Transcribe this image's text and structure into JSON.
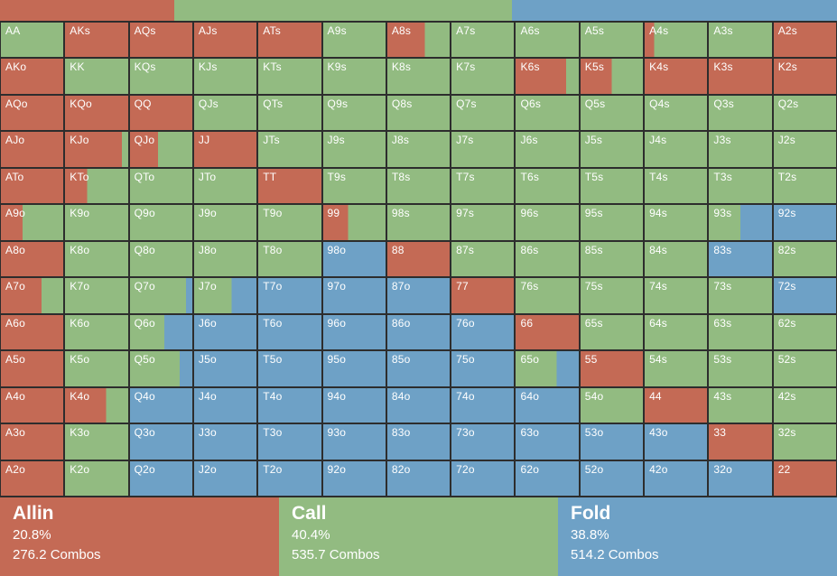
{
  "legend_colors": {
    "allin": "#c46a55",
    "call": "#92bb81",
    "fold": "#6ea1c6"
  },
  "grid_line_color": "#2d2d2d",
  "text_color": "#ffffff",
  "top_bar": {
    "segments": [
      {
        "action": "allin",
        "width_pct": 20.8
      },
      {
        "action": "call",
        "width_pct": 40.4
      },
      {
        "action": "fold",
        "width_pct": 38.8
      }
    ]
  },
  "grid": {
    "rows": 13,
    "cols": 13,
    "cells": [
      {
        "h": "AA",
        "a": 0,
        "c": 100,
        "f": 0
      },
      {
        "h": "AKs",
        "a": 100,
        "c": 0,
        "f": 0
      },
      {
        "h": "AQs",
        "a": 100,
        "c": 0,
        "f": 0
      },
      {
        "h": "AJs",
        "a": 100,
        "c": 0,
        "f": 0
      },
      {
        "h": "ATs",
        "a": 100,
        "c": 0,
        "f": 0
      },
      {
        "h": "A9s",
        "a": 0,
        "c": 100,
        "f": 0
      },
      {
        "h": "A8s",
        "a": 60,
        "c": 40,
        "f": 0
      },
      {
        "h": "A7s",
        "a": 0,
        "c": 100,
        "f": 0
      },
      {
        "h": "A6s",
        "a": 0,
        "c": 100,
        "f": 0
      },
      {
        "h": "A5s",
        "a": 0,
        "c": 100,
        "f": 0
      },
      {
        "h": "A4s",
        "a": 15,
        "c": 85,
        "f": 0
      },
      {
        "h": "A3s",
        "a": 0,
        "c": 100,
        "f": 0
      },
      {
        "h": "A2s",
        "a": 100,
        "c": 0,
        "f": 0
      },
      {
        "h": "AKo",
        "a": 100,
        "c": 0,
        "f": 0
      },
      {
        "h": "KK",
        "a": 0,
        "c": 100,
        "f": 0
      },
      {
        "h": "KQs",
        "a": 0,
        "c": 100,
        "f": 0
      },
      {
        "h": "KJs",
        "a": 0,
        "c": 100,
        "f": 0
      },
      {
        "h": "KTs",
        "a": 0,
        "c": 100,
        "f": 0
      },
      {
        "h": "K9s",
        "a": 0,
        "c": 100,
        "f": 0
      },
      {
        "h": "K8s",
        "a": 0,
        "c": 100,
        "f": 0
      },
      {
        "h": "K7s",
        "a": 0,
        "c": 100,
        "f": 0
      },
      {
        "h": "K6s",
        "a": 80,
        "c": 20,
        "f": 0
      },
      {
        "h": "K5s",
        "a": 50,
        "c": 50,
        "f": 0
      },
      {
        "h": "K4s",
        "a": 100,
        "c": 0,
        "f": 0
      },
      {
        "h": "K3s",
        "a": 100,
        "c": 0,
        "f": 0
      },
      {
        "h": "K2s",
        "a": 100,
        "c": 0,
        "f": 0
      },
      {
        "h": "AQo",
        "a": 100,
        "c": 0,
        "f": 0
      },
      {
        "h": "KQo",
        "a": 100,
        "c": 0,
        "f": 0
      },
      {
        "h": "QQ",
        "a": 100,
        "c": 0,
        "f": 0
      },
      {
        "h": "QJs",
        "a": 0,
        "c": 100,
        "f": 0
      },
      {
        "h": "QTs",
        "a": 0,
        "c": 100,
        "f": 0
      },
      {
        "h": "Q9s",
        "a": 0,
        "c": 100,
        "f": 0
      },
      {
        "h": "Q8s",
        "a": 0,
        "c": 100,
        "f": 0
      },
      {
        "h": "Q7s",
        "a": 0,
        "c": 100,
        "f": 0
      },
      {
        "h": "Q6s",
        "a": 0,
        "c": 100,
        "f": 0
      },
      {
        "h": "Q5s",
        "a": 0,
        "c": 100,
        "f": 0
      },
      {
        "h": "Q4s",
        "a": 0,
        "c": 100,
        "f": 0
      },
      {
        "h": "Q3s",
        "a": 0,
        "c": 100,
        "f": 0
      },
      {
        "h": "Q2s",
        "a": 0,
        "c": 100,
        "f": 0
      },
      {
        "h": "AJo",
        "a": 100,
        "c": 0,
        "f": 0
      },
      {
        "h": "KJo",
        "a": 90,
        "c": 10,
        "f": 0
      },
      {
        "h": "QJo",
        "a": 45,
        "c": 55,
        "f": 0
      },
      {
        "h": "JJ",
        "a": 100,
        "c": 0,
        "f": 0
      },
      {
        "h": "JTs",
        "a": 0,
        "c": 100,
        "f": 0
      },
      {
        "h": "J9s",
        "a": 0,
        "c": 100,
        "f": 0
      },
      {
        "h": "J8s",
        "a": 0,
        "c": 100,
        "f": 0
      },
      {
        "h": "J7s",
        "a": 0,
        "c": 100,
        "f": 0
      },
      {
        "h": "J6s",
        "a": 0,
        "c": 100,
        "f": 0
      },
      {
        "h": "J5s",
        "a": 0,
        "c": 100,
        "f": 0
      },
      {
        "h": "J4s",
        "a": 0,
        "c": 100,
        "f": 0
      },
      {
        "h": "J3s",
        "a": 0,
        "c": 100,
        "f": 0
      },
      {
        "h": "J2s",
        "a": 0,
        "c": 100,
        "f": 0
      },
      {
        "h": "ATo",
        "a": 100,
        "c": 0,
        "f": 0
      },
      {
        "h": "KTo",
        "a": 35,
        "c": 65,
        "f": 0
      },
      {
        "h": "QTo",
        "a": 0,
        "c": 100,
        "f": 0
      },
      {
        "h": "JTo",
        "a": 0,
        "c": 100,
        "f": 0
      },
      {
        "h": "TT",
        "a": 100,
        "c": 0,
        "f": 0
      },
      {
        "h": "T9s",
        "a": 0,
        "c": 100,
        "f": 0
      },
      {
        "h": "T8s",
        "a": 0,
        "c": 100,
        "f": 0
      },
      {
        "h": "T7s",
        "a": 0,
        "c": 100,
        "f": 0
      },
      {
        "h": "T6s",
        "a": 0,
        "c": 100,
        "f": 0
      },
      {
        "h": "T5s",
        "a": 0,
        "c": 100,
        "f": 0
      },
      {
        "h": "T4s",
        "a": 0,
        "c": 100,
        "f": 0
      },
      {
        "h": "T3s",
        "a": 0,
        "c": 100,
        "f": 0
      },
      {
        "h": "T2s",
        "a": 0,
        "c": 100,
        "f": 0
      },
      {
        "h": "A9o",
        "a": 35,
        "c": 65,
        "f": 0
      },
      {
        "h": "K9o",
        "a": 0,
        "c": 100,
        "f": 0
      },
      {
        "h": "Q9o",
        "a": 0,
        "c": 100,
        "f": 0
      },
      {
        "h": "J9o",
        "a": 0,
        "c": 100,
        "f": 0
      },
      {
        "h": "T9o",
        "a": 0,
        "c": 100,
        "f": 0
      },
      {
        "h": "99",
        "a": 40,
        "c": 60,
        "f": 0
      },
      {
        "h": "98s",
        "a": 0,
        "c": 100,
        "f": 0
      },
      {
        "h": "97s",
        "a": 0,
        "c": 100,
        "f": 0
      },
      {
        "h": "96s",
        "a": 0,
        "c": 100,
        "f": 0
      },
      {
        "h": "95s",
        "a": 0,
        "c": 100,
        "f": 0
      },
      {
        "h": "94s",
        "a": 0,
        "c": 100,
        "f": 0
      },
      {
        "h": "93s",
        "a": 0,
        "c": 50,
        "f": 50
      },
      {
        "h": "92s",
        "a": 0,
        "c": 0,
        "f": 100
      },
      {
        "h": "A8o",
        "a": 100,
        "c": 0,
        "f": 0
      },
      {
        "h": "K8o",
        "a": 0,
        "c": 100,
        "f": 0
      },
      {
        "h": "Q8o",
        "a": 0,
        "c": 100,
        "f": 0
      },
      {
        "h": "J8o",
        "a": 0,
        "c": 100,
        "f": 0
      },
      {
        "h": "T8o",
        "a": 0,
        "c": 100,
        "f": 0
      },
      {
        "h": "98o",
        "a": 0,
        "c": 0,
        "f": 100
      },
      {
        "h": "88",
        "a": 100,
        "c": 0,
        "f": 0
      },
      {
        "h": "87s",
        "a": 0,
        "c": 100,
        "f": 0
      },
      {
        "h": "86s",
        "a": 0,
        "c": 100,
        "f": 0
      },
      {
        "h": "85s",
        "a": 0,
        "c": 100,
        "f": 0
      },
      {
        "h": "84s",
        "a": 0,
        "c": 100,
        "f": 0
      },
      {
        "h": "83s",
        "a": 0,
        "c": 0,
        "f": 100
      },
      {
        "h": "82s",
        "a": 0,
        "c": 100,
        "f": 0
      },
      {
        "h": "A7o",
        "a": 65,
        "c": 35,
        "f": 0
      },
      {
        "h": "K7o",
        "a": 0,
        "c": 100,
        "f": 0
      },
      {
        "h": "Q7o",
        "a": 0,
        "c": 90,
        "f": 10
      },
      {
        "h": "J7o",
        "a": 0,
        "c": 60,
        "f": 40
      },
      {
        "h": "T7o",
        "a": 0,
        "c": 0,
        "f": 100
      },
      {
        "h": "97o",
        "a": 0,
        "c": 0,
        "f": 100
      },
      {
        "h": "87o",
        "a": 0,
        "c": 0,
        "f": 100
      },
      {
        "h": "77",
        "a": 100,
        "c": 0,
        "f": 0
      },
      {
        "h": "76s",
        "a": 0,
        "c": 100,
        "f": 0
      },
      {
        "h": "75s",
        "a": 0,
        "c": 100,
        "f": 0
      },
      {
        "h": "74s",
        "a": 0,
        "c": 100,
        "f": 0
      },
      {
        "h": "73s",
        "a": 0,
        "c": 100,
        "f": 0
      },
      {
        "h": "72s",
        "a": 0,
        "c": 0,
        "f": 100
      },
      {
        "h": "A6o",
        "a": 100,
        "c": 0,
        "f": 0
      },
      {
        "h": "K6o",
        "a": 0,
        "c": 100,
        "f": 0
      },
      {
        "h": "Q6o",
        "a": 0,
        "c": 55,
        "f": 45
      },
      {
        "h": "J6o",
        "a": 0,
        "c": 0,
        "f": 100
      },
      {
        "h": "T6o",
        "a": 0,
        "c": 0,
        "f": 100
      },
      {
        "h": "96o",
        "a": 0,
        "c": 0,
        "f": 100
      },
      {
        "h": "86o",
        "a": 0,
        "c": 0,
        "f": 100
      },
      {
        "h": "76o",
        "a": 0,
        "c": 0,
        "f": 100
      },
      {
        "h": "66",
        "a": 100,
        "c": 0,
        "f": 0
      },
      {
        "h": "65s",
        "a": 0,
        "c": 100,
        "f": 0
      },
      {
        "h": "64s",
        "a": 0,
        "c": 100,
        "f": 0
      },
      {
        "h": "63s",
        "a": 0,
        "c": 100,
        "f": 0
      },
      {
        "h": "62s",
        "a": 0,
        "c": 100,
        "f": 0
      },
      {
        "h": "A5o",
        "a": 100,
        "c": 0,
        "f": 0
      },
      {
        "h": "K5o",
        "a": 0,
        "c": 100,
        "f": 0
      },
      {
        "h": "Q5o",
        "a": 0,
        "c": 80,
        "f": 20
      },
      {
        "h": "J5o",
        "a": 0,
        "c": 0,
        "f": 100
      },
      {
        "h": "T5o",
        "a": 0,
        "c": 0,
        "f": 100
      },
      {
        "h": "95o",
        "a": 0,
        "c": 0,
        "f": 100
      },
      {
        "h": "85o",
        "a": 0,
        "c": 0,
        "f": 100
      },
      {
        "h": "75o",
        "a": 0,
        "c": 0,
        "f": 100
      },
      {
        "h": "65o",
        "a": 0,
        "c": 65,
        "f": 35
      },
      {
        "h": "55",
        "a": 100,
        "c": 0,
        "f": 0
      },
      {
        "h": "54s",
        "a": 0,
        "c": 100,
        "f": 0
      },
      {
        "h": "53s",
        "a": 0,
        "c": 100,
        "f": 0
      },
      {
        "h": "52s",
        "a": 0,
        "c": 100,
        "f": 0
      },
      {
        "h": "A4o",
        "a": 100,
        "c": 0,
        "f": 0
      },
      {
        "h": "K4o",
        "a": 65,
        "c": 35,
        "f": 0
      },
      {
        "h": "Q4o",
        "a": 0,
        "c": 0,
        "f": 100
      },
      {
        "h": "J4o",
        "a": 0,
        "c": 0,
        "f": 100
      },
      {
        "h": "T4o",
        "a": 0,
        "c": 0,
        "f": 100
      },
      {
        "h": "94o",
        "a": 0,
        "c": 0,
        "f": 100
      },
      {
        "h": "84o",
        "a": 0,
        "c": 0,
        "f": 100
      },
      {
        "h": "74o",
        "a": 0,
        "c": 0,
        "f": 100
      },
      {
        "h": "64o",
        "a": 0,
        "c": 0,
        "f": 100
      },
      {
        "h": "54o",
        "a": 0,
        "c": 100,
        "f": 0
      },
      {
        "h": "44",
        "a": 100,
        "c": 0,
        "f": 0
      },
      {
        "h": "43s",
        "a": 0,
        "c": 100,
        "f": 0
      },
      {
        "h": "42s",
        "a": 0,
        "c": 100,
        "f": 0
      },
      {
        "h": "A3o",
        "a": 100,
        "c": 0,
        "f": 0
      },
      {
        "h": "K3o",
        "a": 0,
        "c": 100,
        "f": 0
      },
      {
        "h": "Q3o",
        "a": 0,
        "c": 0,
        "f": 100
      },
      {
        "h": "J3o",
        "a": 0,
        "c": 0,
        "f": 100
      },
      {
        "h": "T3o",
        "a": 0,
        "c": 0,
        "f": 100
      },
      {
        "h": "93o",
        "a": 0,
        "c": 0,
        "f": 100
      },
      {
        "h": "83o",
        "a": 0,
        "c": 0,
        "f": 100
      },
      {
        "h": "73o",
        "a": 0,
        "c": 0,
        "f": 100
      },
      {
        "h": "63o",
        "a": 0,
        "c": 0,
        "f": 100
      },
      {
        "h": "53o",
        "a": 0,
        "c": 0,
        "f": 100
      },
      {
        "h": "43o",
        "a": 0,
        "c": 0,
        "f": 100
      },
      {
        "h": "33",
        "a": 100,
        "c": 0,
        "f": 0
      },
      {
        "h": "32s",
        "a": 0,
        "c": 100,
        "f": 0
      },
      {
        "h": "A2o",
        "a": 100,
        "c": 0,
        "f": 0
      },
      {
        "h": "K2o",
        "a": 0,
        "c": 100,
        "f": 0
      },
      {
        "h": "Q2o",
        "a": 0,
        "c": 0,
        "f": 100
      },
      {
        "h": "J2o",
        "a": 0,
        "c": 0,
        "f": 100
      },
      {
        "h": "T2o",
        "a": 0,
        "c": 0,
        "f": 100
      },
      {
        "h": "92o",
        "a": 0,
        "c": 0,
        "f": 100
      },
      {
        "h": "82o",
        "a": 0,
        "c": 0,
        "f": 100
      },
      {
        "h": "72o",
        "a": 0,
        "c": 0,
        "f": 100
      },
      {
        "h": "62o",
        "a": 0,
        "c": 0,
        "f": 100
      },
      {
        "h": "52o",
        "a": 0,
        "c": 0,
        "f": 100
      },
      {
        "h": "42o",
        "a": 0,
        "c": 0,
        "f": 100
      },
      {
        "h": "32o",
        "a": 0,
        "c": 0,
        "f": 100
      },
      {
        "h": "22",
        "a": 100,
        "c": 0,
        "f": 0
      }
    ]
  },
  "summary": [
    {
      "action": "allin",
      "label": "Allin",
      "percent": "20.8%",
      "combos": "276.2 Combos"
    },
    {
      "action": "call",
      "label": "Call",
      "percent": "40.4%",
      "combos": "535.7 Combos"
    },
    {
      "action": "fold",
      "label": "Fold",
      "percent": "38.8%",
      "combos": "514.2 Combos"
    }
  ]
}
